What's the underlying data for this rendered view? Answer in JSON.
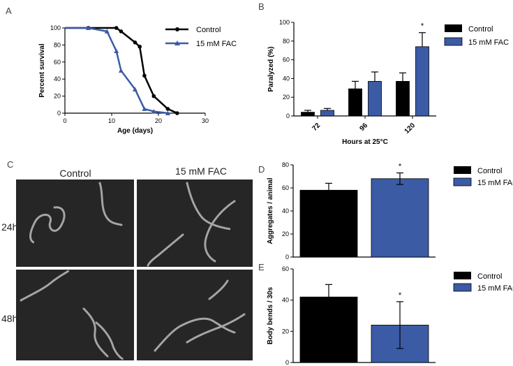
{
  "colors": {
    "control": "#000000",
    "fac": "#3b5ba5",
    "micro_bg": "#262626",
    "worm": "#bcbcbc"
  },
  "panels": {
    "A": "A",
    "B": "B",
    "C": "C",
    "D": "D",
    "E": "E"
  },
  "legend": {
    "control": "Control",
    "fac": "15 mM FAC"
  },
  "chart_data": [
    {
      "id": "A",
      "type": "line",
      "title": "",
      "xlabel": "Age (days)",
      "ylabel": "Percent survival",
      "xlim": [
        0,
        30
      ],
      "ylim": [
        0,
        100
      ],
      "xticks": [
        0,
        10,
        20,
        30
      ],
      "yticks": [
        0,
        20,
        40,
        60,
        80,
        100
      ],
      "series": [
        {
          "name": "Control",
          "x": [
            0,
            5,
            11,
            12,
            15,
            16,
            17,
            19,
            22,
            24
          ],
          "y": [
            100,
            100,
            100,
            96,
            83,
            78,
            44,
            20,
            5,
            0
          ]
        },
        {
          "name": "15 mM FAC",
          "x": [
            0,
            5,
            9,
            11,
            12,
            15,
            17,
            19,
            22
          ],
          "y": [
            100,
            100,
            96,
            73,
            50,
            28,
            5,
            2,
            0
          ]
        }
      ]
    },
    {
      "id": "B",
      "type": "bar",
      "xlabel": "Hours at 25°C",
      "ylabel": "Paralyzed (%)",
      "ylim": [
        0,
        100
      ],
      "yticks": [
        0,
        20,
        40,
        60,
        80,
        100
      ],
      "categories": [
        "72",
        "96",
        "120"
      ],
      "series": [
        {
          "name": "Control",
          "values": [
            4,
            29,
            37
          ],
          "errors": [
            2,
            8,
            9
          ]
        },
        {
          "name": "15 mM FAC",
          "values": [
            6,
            37,
            74
          ],
          "errors": [
            2,
            10,
            15
          ]
        }
      ],
      "annotations": [
        {
          "category": "120",
          "series": "15 mM FAC",
          "text": "*"
        }
      ]
    },
    {
      "id": "D",
      "type": "bar",
      "ylabel": "Aggregates / animal",
      "ylim": [
        0,
        80
      ],
      "yticks": [
        0,
        20,
        40,
        60,
        80
      ],
      "categories": [
        "Control",
        "15 mM FAC"
      ],
      "values": [
        58,
        68
      ],
      "errors": [
        6,
        5
      ],
      "annotations": [
        {
          "category": "15 mM FAC",
          "text": "*"
        }
      ]
    },
    {
      "id": "E",
      "type": "bar",
      "ylabel": "Body bends / 30s",
      "ylim": [
        0,
        60
      ],
      "yticks": [
        0,
        20,
        40,
        60
      ],
      "categories": [
        "Control",
        "15 mM FAC"
      ],
      "values": [
        42,
        24
      ],
      "errors": [
        8,
        15
      ],
      "annotations": [
        {
          "category": "15 mM FAC",
          "text": "*"
        }
      ]
    }
  ],
  "micrographs": {
    "col_labels": [
      "Control",
      "15 mM FAC"
    ],
    "row_labels": [
      "24h",
      "48h"
    ]
  }
}
